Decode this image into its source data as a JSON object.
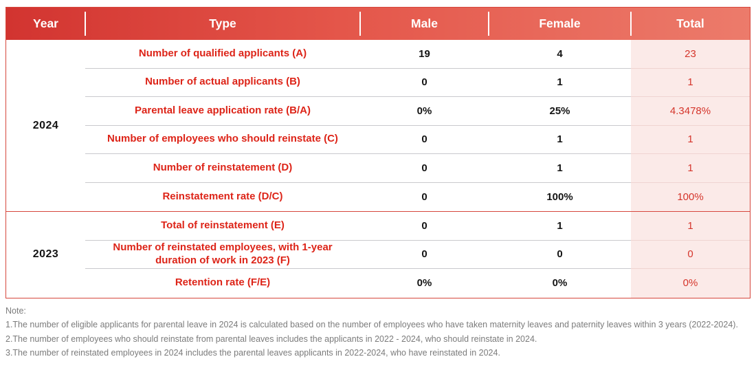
{
  "colors": {
    "header_gradient_left": "#d23430",
    "header_gradient_right": "#ec7b6b",
    "header_text": "#ffffff",
    "label_red": "#dd2418",
    "total_text_red": "#d5352b",
    "total_column_bg": "#fbeae8",
    "divider_gray": "#c9c9cd",
    "section_border_red": "#d6463c",
    "value_black": "#141414",
    "note_gray": "#7b7b7b"
  },
  "table": {
    "headers": [
      "Year",
      "Type",
      "Male",
      "Female",
      "Total"
    ],
    "sections": [
      {
        "year": "2024",
        "rows": [
          {
            "label": "Number of qualified applicants (A)",
            "male": "19",
            "female": "4",
            "total": "23"
          },
          {
            "label": "Number of actual applicants (B)",
            "male": "0",
            "female": "1",
            "total": "1"
          },
          {
            "label": "Parental leave application rate (B/A)",
            "male": "0%",
            "female": "25%",
            "total": "4.3478%"
          },
          {
            "label": "Number of employees who should reinstate (C)",
            "male": "0",
            "female": "1",
            "total": "1"
          },
          {
            "label": "Number of reinstatement (D)",
            "male": "0",
            "female": "1",
            "total": "1"
          },
          {
            "label": "Reinstatement rate (D/C)",
            "male": "0",
            "female": "100%",
            "total": "100%"
          }
        ]
      },
      {
        "year": "2023",
        "rows": [
          {
            "label": "Total of reinstatement (E)",
            "male": "0",
            "female": "1",
            "total": "1"
          },
          {
            "label": "Number of reinstated employees, with 1-year duration of work in 2023 (F)",
            "male": "0",
            "female": "0",
            "total": "0"
          },
          {
            "label": "Retention rate (F/E)",
            "male": "0%",
            "female": "0%",
            "total": "0%"
          }
        ]
      }
    ]
  },
  "notes": {
    "title": "Note:",
    "items": [
      "1.The number of eligible applicants for parental leave in 2024 is calculated based on the number of employees who have taken maternity leaves and paternity leaves within 3 years (2022-2024).",
      "2.The number of employees who should reinstate from parental leaves includes the applicants in 2022 - 2024, who should reinstate in 2024.",
      "3.The number of reinstated employees in 2024 includes the parental leaves applicants in 2022-2024, who have reinstated in 2024."
    ]
  },
  "chart_data": {
    "type": "table",
    "title": "Parental leave statistics",
    "columns": [
      "Year",
      "Type",
      "Male",
      "Female",
      "Total"
    ],
    "rows": [
      [
        "2024",
        "Number of qualified applicants (A)",
        "19",
        "4",
        "23"
      ],
      [
        "2024",
        "Number of actual applicants (B)",
        "0",
        "1",
        "1"
      ],
      [
        "2024",
        "Parental leave application rate (B/A)",
        "0%",
        "25%",
        "4.3478%"
      ],
      [
        "2024",
        "Number of employees who should reinstate (C)",
        "0",
        "1",
        "1"
      ],
      [
        "2024",
        "Number of reinstatement (D)",
        "0",
        "1",
        "1"
      ],
      [
        "2024",
        "Reinstatement rate (D/C)",
        "0",
        "100%",
        "100%"
      ],
      [
        "2023",
        "Total of reinstatement (E)",
        "0",
        "1",
        "1"
      ],
      [
        "2023",
        "Number of reinstated employees, with 1-year duration of work in 2023 (F)",
        "0",
        "0",
        "0"
      ],
      [
        "2023",
        "Retention rate (F/E)",
        "0%",
        "0%",
        "0%"
      ]
    ]
  }
}
